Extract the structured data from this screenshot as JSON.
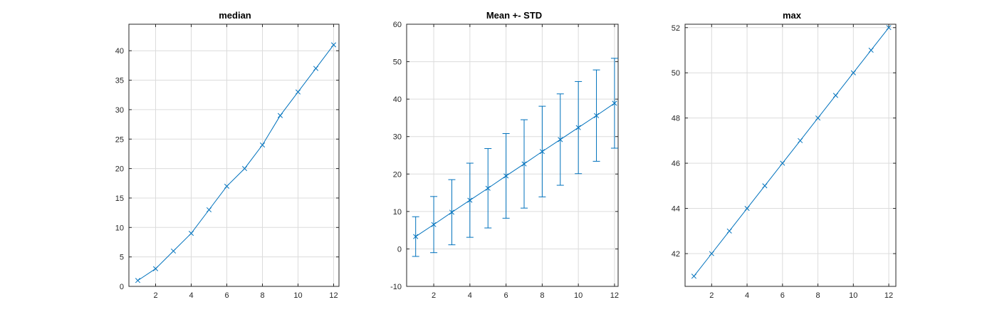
{
  "chart_data": [
    {
      "type": "line",
      "title": "median",
      "xlabel": "",
      "ylabel": "",
      "xlim": [
        0.5,
        12.3
      ],
      "ylim": [
        0,
        44.5
      ],
      "xticks": [
        2,
        4,
        6,
        8,
        10,
        12
      ],
      "yticks": [
        0,
        5,
        10,
        15,
        20,
        25,
        30,
        35,
        40
      ],
      "grid": true,
      "marker": "x",
      "color": "#0072BD",
      "series": [
        {
          "x": [
            1,
            2,
            3,
            4,
            5,
            6,
            7,
            8,
            9,
            10,
            11,
            12
          ],
          "y": [
            1,
            3,
            6,
            9,
            13,
            17,
            20,
            24,
            29,
            33,
            37,
            41
          ]
        }
      ]
    },
    {
      "type": "line",
      "title": "Mean +- STD",
      "xlabel": "",
      "ylabel": "",
      "xlim": [
        0.5,
        12.2
      ],
      "ylim": [
        -10,
        60
      ],
      "xticks": [
        2,
        4,
        6,
        8,
        10,
        12
      ],
      "yticks": [
        -10,
        0,
        10,
        20,
        30,
        40,
        50,
        60
      ],
      "grid": true,
      "marker": "x",
      "color": "#0072BD",
      "error_bars": true,
      "series": [
        {
          "x": [
            1,
            2,
            3,
            4,
            5,
            6,
            7,
            8,
            9,
            10,
            11,
            12
          ],
          "y": [
            3.3,
            6.5,
            9.8,
            13,
            16.2,
            19.5,
            22.7,
            26,
            29.2,
            32.4,
            35.6,
            38.9
          ],
          "err": [
            5.3,
            7.5,
            8.7,
            9.9,
            10.6,
            11.3,
            11.8,
            12.1,
            12.2,
            12.3,
            12.2,
            12.0
          ]
        }
      ]
    },
    {
      "type": "line",
      "title": "max",
      "xlabel": "",
      "ylabel": "",
      "xlim": [
        0.5,
        12.4
      ],
      "ylim": [
        40.55,
        52.15
      ],
      "xticks": [
        2,
        4,
        6,
        8,
        10,
        12
      ],
      "yticks": [
        42,
        44,
        46,
        48,
        50,
        52
      ],
      "grid": true,
      "marker": "x",
      "color": "#0072BD",
      "series": [
        {
          "x": [
            1,
            2,
            3,
            4,
            5,
            6,
            7,
            8,
            9,
            10,
            11,
            12
          ],
          "y": [
            41,
            42,
            43,
            44,
            45,
            46,
            47,
            48,
            49,
            50,
            51,
            52
          ]
        }
      ]
    }
  ]
}
